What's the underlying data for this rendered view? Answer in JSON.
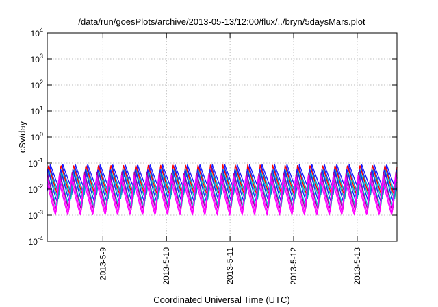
{
  "chart_data": {
    "type": "line",
    "title": "/data/run/goesPlots/archive/2013-05-13/12:00/flux/../bryn/5daysMars.plot",
    "xlabel": "Coordinated Universal Time (UTC)",
    "ylabel": "cSv/day",
    "y_scale": "log",
    "ylim_exponents": [
      -4,
      4
    ],
    "y_tick_base": "10",
    "y_tick_exponents": [
      "4",
      "3",
      "2",
      "1",
      "0",
      "-1",
      "-2",
      "-3",
      "-4"
    ],
    "x_range_days": [
      "2013-05-08 03:00",
      "2013-05-13 15:00"
    ],
    "x_ticks": [
      "2013-5-9",
      "2013-5-10",
      "2013-5-11",
      "2013-5-12",
      "2013-5-13"
    ],
    "grid": true,
    "oscillation_period_hours": 4.7,
    "series": [
      {
        "color": "#1a1aff",
        "min": 0.01,
        "max": 0.09
      },
      {
        "color": "#1a1aff",
        "min": 0.006,
        "max": 0.075
      },
      {
        "color": "#00c0c0",
        "min": 0.008,
        "max": 0.06
      },
      {
        "color": "#00b8b8",
        "min": 0.004,
        "max": 0.05
      },
      {
        "color": "#ff0000",
        "min": 0.006,
        "max": 0.085
      },
      {
        "color": "#1a1aff",
        "min": 0.003,
        "max": 0.06
      },
      {
        "color": "#00c8c8",
        "min": 0.002,
        "max": 0.04
      },
      {
        "color": "#a000a0",
        "min": 0.0016,
        "max": 0.045
      },
      {
        "color": "#ff00ff",
        "min": 0.0012,
        "max": 0.035
      },
      {
        "color": "#ff00ff",
        "min": 0.001,
        "max": 0.025
      }
    ]
  }
}
